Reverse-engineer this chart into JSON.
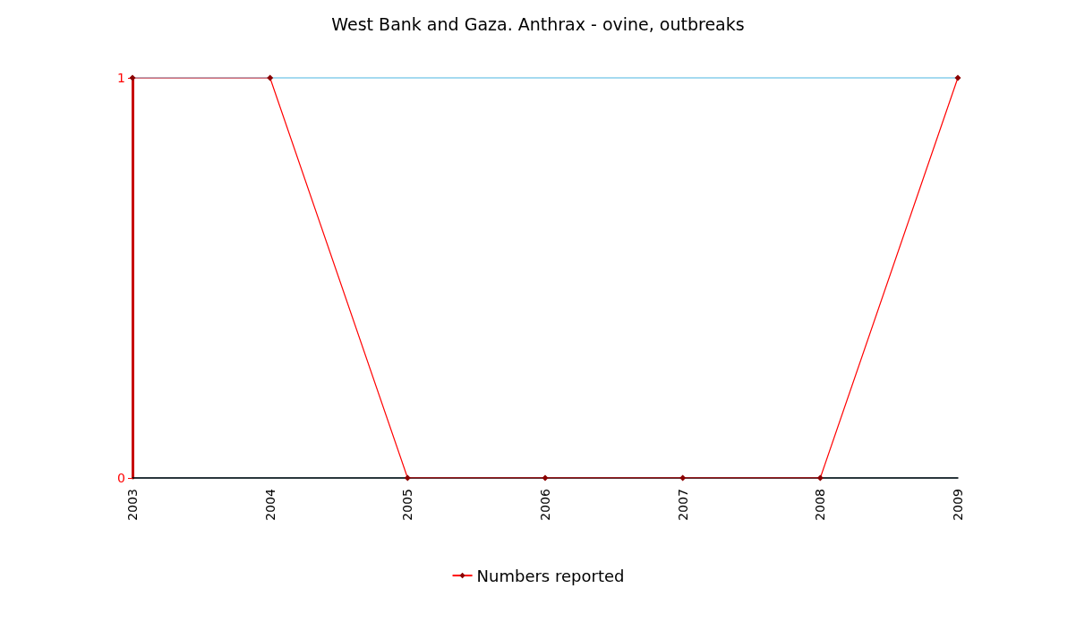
{
  "chart_data": {
    "type": "line",
    "title": "West Bank and Gaza. Anthrax - ovine, outbreaks",
    "categories": [
      "2003",
      "2004",
      "2005",
      "2006",
      "2007",
      "2008",
      "2009"
    ],
    "series": [
      {
        "name": "Numbers reported",
        "color": "#ff0000",
        "values": [
          1,
          1,
          0,
          0,
          0,
          0,
          1
        ]
      }
    ],
    "ylim": [
      0,
      1
    ],
    "yticks": [
      0,
      1
    ],
    "grid": "y",
    "legend": "bottom",
    "marker": "diamond",
    "line_style": "solid"
  }
}
